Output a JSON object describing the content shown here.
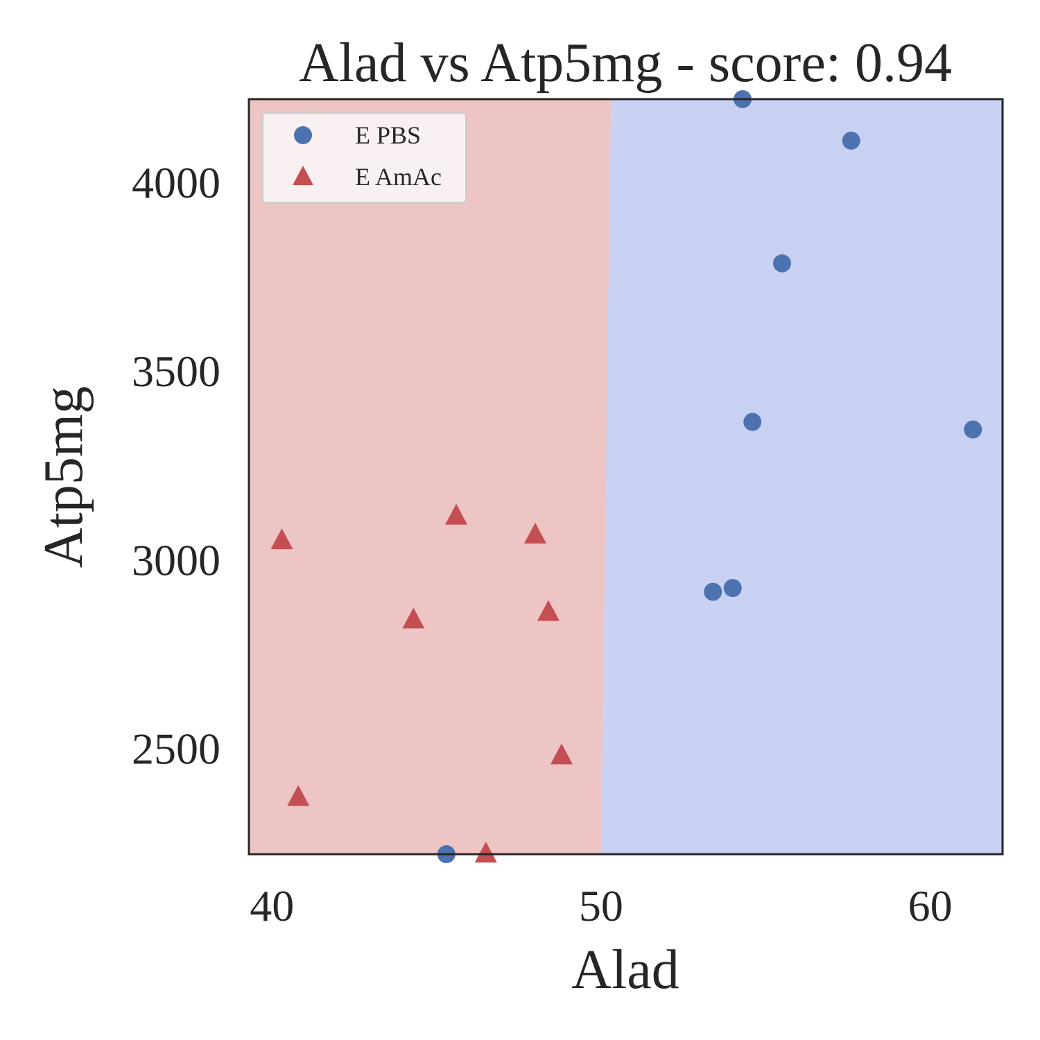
{
  "chart_data": {
    "type": "scatter",
    "title": "Alad vs Atp5mg - score: 0.94",
    "xlabel": "Alad",
    "ylabel": "Atp5mg",
    "xlim": [
      39.3,
      62.2
    ],
    "ylim": [
      2220,
      4220
    ],
    "xticks": [
      40,
      50,
      60
    ],
    "yticks": [
      2500,
      3000,
      3500,
      4000
    ],
    "grid": false,
    "legend_position": "top-left",
    "decision_regions": {
      "colors": {
        "E AmAc": "#edc5c4",
        "E PBS": "#c9d1f2"
      },
      "boundary": [
        [
          50.3,
          4220
        ],
        [
          50.0,
          2220
        ]
      ]
    },
    "series": [
      {
        "name": "E PBS",
        "marker": "circle",
        "color": "#4c72b0",
        "points": [
          [
            54.3,
            4220
          ],
          [
            57.6,
            4110
          ],
          [
            55.5,
            3785
          ],
          [
            54.6,
            3365
          ],
          [
            61.3,
            3345
          ],
          [
            53.4,
            2915
          ],
          [
            54.0,
            2925
          ],
          [
            45.3,
            2220
          ]
        ]
      },
      {
        "name": "E AmAc",
        "marker": "triangle",
        "color": "#c44e52",
        "points": [
          [
            40.3,
            3050
          ],
          [
            45.6,
            3115
          ],
          [
            48.0,
            3065
          ],
          [
            44.3,
            2840
          ],
          [
            48.4,
            2860
          ],
          [
            48.8,
            2480
          ],
          [
            40.8,
            2370
          ],
          [
            46.5,
            2220
          ]
        ]
      }
    ]
  }
}
